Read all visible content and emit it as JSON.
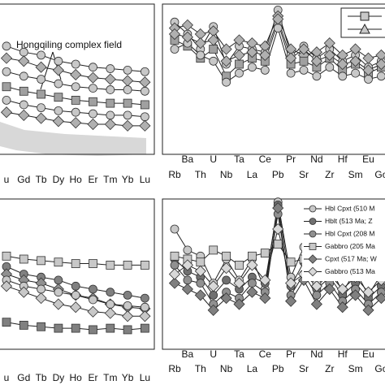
{
  "chart_data": [
    {
      "type": "line",
      "annotation": "Hongqiling complex field",
      "categories": [
        "u",
        "Gd",
        "Tb",
        "Dy",
        "Ho",
        "Er",
        "Tm",
        "Yb",
        "Lu"
      ],
      "ylim": [
        0,
        100
      ],
      "series": [
        {
          "color": "#c8c8c8",
          "marker": "circle",
          "values": [
            72,
            68,
            66,
            62,
            60,
            58,
            57,
            56,
            55
          ]
        },
        {
          "color": "#b0b0b0",
          "marker": "diamond",
          "values": [
            64,
            62,
            58,
            56,
            53,
            51,
            50,
            49,
            48
          ]
        },
        {
          "color": "#c8c8c8",
          "marker": "circle",
          "values": [
            55,
            52,
            50,
            47,
            45,
            44,
            43,
            43,
            42
          ]
        },
        {
          "color": "#a0a0a0",
          "marker": "square",
          "values": [
            45,
            42,
            40,
            38,
            36,
            35,
            34,
            34,
            33
          ]
        },
        {
          "color": "#c8c8c8",
          "marker": "circle",
          "values": [
            36,
            33,
            31,
            29,
            28,
            27,
            26,
            26,
            25
          ]
        },
        {
          "color": "#b0b0b0",
          "marker": "diamond",
          "values": [
            28,
            26,
            24,
            22,
            21,
            20,
            20,
            19,
            19
          ]
        }
      ]
    },
    {
      "type": "line",
      "categories": [
        "Rb",
        "Ba",
        "Th",
        "U",
        "Nb",
        "Ta",
        "La",
        "Ce",
        "Pb",
        "Pr",
        "Sr",
        "Nd",
        "Zr",
        "Hf",
        "Sm",
        "Eu",
        "Go"
      ],
      "ylim": [
        0,
        100
      ],
      "series": [
        {
          "color": "#c8c8c8",
          "marker": "circle",
          "values": [
            88,
            80,
            70,
            85,
            60,
            72,
            70,
            68,
            96,
            66,
            72,
            64,
            70,
            62,
            66,
            58,
            62
          ]
        },
        {
          "color": "#b0b0b0",
          "marker": "diamond",
          "values": [
            84,
            86,
            80,
            82,
            70,
            76,
            74,
            72,
            92,
            70,
            66,
            68,
            74,
            66,
            70,
            64,
            66
          ]
        },
        {
          "color": "#a0a0a0",
          "marker": "square",
          "values": [
            76,
            72,
            64,
            70,
            52,
            60,
            64,
            62,
            88,
            60,
            62,
            58,
            64,
            56,
            60,
            54,
            58
          ]
        },
        {
          "color": "#c8c8c8",
          "marker": "circle",
          "values": [
            70,
            74,
            66,
            62,
            48,
            54,
            58,
            56,
            84,
            54,
            56,
            52,
            58,
            52,
            54,
            50,
            52
          ]
        },
        {
          "color": "#b0b0b0",
          "marker": "diamond",
          "values": [
            80,
            78,
            74,
            76,
            62,
            66,
            68,
            66,
            90,
            64,
            70,
            62,
            66,
            60,
            62,
            56,
            60
          ]
        }
      ]
    },
    {
      "type": "line",
      "categories": [
        "u",
        "Gd",
        "Tb",
        "Dy",
        "Ho",
        "Er",
        "Tm",
        "Yb",
        "Lu"
      ],
      "ylim": [
        0,
        100
      ],
      "series": [
        {
          "color": "#c8c8c8",
          "marker": "square",
          "values": [
            62,
            60,
            59,
            58,
            57,
            57,
            56,
            56,
            56
          ]
        },
        {
          "color": "#808080",
          "marker": "circle",
          "values": [
            55,
            50,
            48,
            46,
            42,
            40,
            38,
            36,
            34
          ]
        },
        {
          "color": "#909090",
          "marker": "diamond",
          "values": [
            50,
            46,
            44,
            40,
            36,
            34,
            30,
            28,
            27
          ]
        },
        {
          "color": "#c8c8c8",
          "marker": "circle",
          "values": [
            46,
            42,
            40,
            38,
            36,
            33,
            30,
            29,
            28
          ]
        },
        {
          "color": "#c8c8c8",
          "marker": "diamond",
          "values": [
            42,
            38,
            34,
            30,
            28,
            25,
            24,
            22,
            22
          ]
        },
        {
          "color": "#808080",
          "marker": "square",
          "values": [
            18,
            16,
            15,
            14,
            14,
            13,
            14,
            13,
            14
          ]
        }
      ]
    },
    {
      "type": "line",
      "categories": [
        "Rb",
        "Ba",
        "Th",
        "U",
        "Nb",
        "Ta",
        "La",
        "Ce",
        "Pb",
        "Pr",
        "Sr",
        "Nd",
        "Zr",
        "Hf",
        "Sm",
        "Eu",
        "Go"
      ],
      "ylim": [
        0,
        100
      ],
      "series": [
        {
          "name": "Hbl Cpxt (510 M",
          "color": "#c8c8c8",
          "marker": "circle",
          "values": [
            80,
            66,
            62,
            44,
            60,
            46,
            60,
            40,
            98,
            48,
            68,
            44,
            56,
            38,
            52,
            36,
            50
          ]
        },
        {
          "name": "Hblt (513 Ma; Z",
          "color": "#707070",
          "marker": "circle",
          "values": [
            60,
            52,
            48,
            36,
            46,
            40,
            48,
            44,
            96,
            42,
            58,
            40,
            48,
            36,
            44,
            34,
            42
          ]
        },
        {
          "name": "Hbl Cpxt (208 M",
          "color": "#909090",
          "marker": "circle",
          "values": [
            56,
            46,
            44,
            30,
            38,
            34,
            44,
            38,
            90,
            36,
            50,
            36,
            44,
            32,
            40,
            30,
            38
          ]
        },
        {
          "name": "Gabbro (205 Ma",
          "color": "#c8c8c8",
          "marker": "square",
          "values": [
            62,
            60,
            58,
            66,
            62,
            56,
            62,
            64,
            70,
            58,
            60,
            56,
            58,
            52,
            56,
            50,
            52
          ]
        },
        {
          "name": "Cpxt (517 Ma; W",
          "color": "#808080",
          "marker": "diamond",
          "values": [
            44,
            40,
            36,
            26,
            34,
            30,
            38,
            34,
            94,
            32,
            46,
            30,
            40,
            28,
            36,
            26,
            34
          ]
        },
        {
          "name": "Gabbro (513 Ma",
          "color": "#d8d8d8",
          "marker": "diamond",
          "values": [
            50,
            56,
            52,
            42,
            54,
            44,
            56,
            46,
            80,
            44,
            50,
            42,
            50,
            40,
            48,
            38,
            46
          ]
        }
      ]
    }
  ]
}
